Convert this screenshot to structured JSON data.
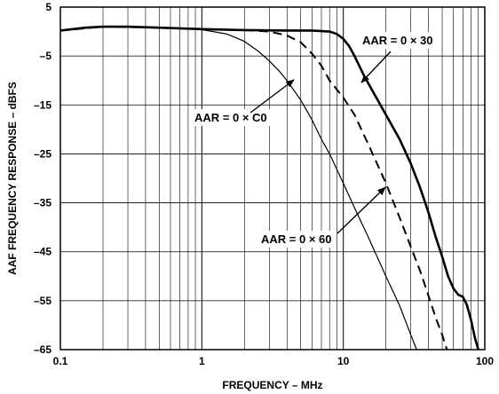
{
  "chart_data": {
    "type": "line",
    "xlabel": "FREQUENCY – MHz",
    "ylabel": "AAF FREQUENCY RESPONSE – dBFS",
    "x_scale": "log",
    "xlim": [
      0.1,
      100
    ],
    "ylim": [
      -65,
      5
    ],
    "grid": true,
    "x_ticks": [
      0.1,
      1,
      10,
      100
    ],
    "x_tick_labels": [
      "0.1",
      "1",
      "10",
      "100"
    ],
    "y_ticks": [
      5,
      -5,
      -15,
      -25,
      -35,
      -45,
      -55,
      -65
    ],
    "y_tick_labels": [
      "5",
      "–5",
      "–15",
      "–25",
      "–35",
      "–45",
      "–55",
      "–65"
    ],
    "series": [
      {
        "name": "AAR = 0 × 30",
        "style": "thick",
        "points": [
          [
            0.1,
            0.2
          ],
          [
            0.15,
            0.8
          ],
          [
            0.2,
            1.0
          ],
          [
            0.3,
            1.0
          ],
          [
            0.5,
            0.8
          ],
          [
            1,
            0.5
          ],
          [
            2,
            0.3
          ],
          [
            4,
            0.2
          ],
          [
            6,
            0.2
          ],
          [
            8,
            0.0
          ],
          [
            9,
            -0.5
          ],
          [
            10,
            -1.5
          ],
          [
            11,
            -3
          ],
          [
            12,
            -5
          ],
          [
            14,
            -9
          ],
          [
            16,
            -12
          ],
          [
            20,
            -17
          ],
          [
            25,
            -22
          ],
          [
            30,
            -27
          ],
          [
            35,
            -32
          ],
          [
            40,
            -37
          ],
          [
            45,
            -42
          ],
          [
            50,
            -46
          ],
          [
            55,
            -50
          ],
          [
            60,
            -52.5
          ],
          [
            65,
            -53.8
          ],
          [
            70,
            -54.2
          ],
          [
            75,
            -56
          ],
          [
            80,
            -59
          ],
          [
            85,
            -62.5
          ],
          [
            90,
            -65
          ]
        ]
      },
      {
        "name": "AAR = 0 × 60",
        "style": "dashed",
        "points": [
          [
            0.1,
            0.2
          ],
          [
            0.2,
            1.0
          ],
          [
            0.5,
            0.8
          ],
          [
            1,
            0.5
          ],
          [
            2,
            0.3
          ],
          [
            3,
            0.0
          ],
          [
            4,
            -0.8
          ],
          [
            5,
            -2.2
          ],
          [
            6,
            -4.5
          ],
          [
            7,
            -7
          ],
          [
            8,
            -10
          ],
          [
            10,
            -13.5
          ],
          [
            12,
            -17
          ],
          [
            15,
            -23
          ],
          [
            20,
            -31
          ],
          [
            25,
            -38
          ],
          [
            30,
            -44
          ],
          [
            35,
            -49
          ],
          [
            40,
            -54
          ],
          [
            45,
            -58.5
          ],
          [
            50,
            -62
          ],
          [
            54,
            -65
          ]
        ]
      },
      {
        "name": "AAR = 0 × C0",
        "style": "thin",
        "points": [
          [
            0.1,
            0.2
          ],
          [
            0.2,
            1.0
          ],
          [
            0.5,
            0.8
          ],
          [
            1,
            0.4
          ],
          [
            1.5,
            -0.5
          ],
          [
            2,
            -2
          ],
          [
            2.5,
            -4
          ],
          [
            3,
            -6
          ],
          [
            3.5,
            -8
          ],
          [
            4,
            -10
          ],
          [
            5,
            -14
          ],
          [
            6,
            -18
          ],
          [
            7,
            -22
          ],
          [
            8,
            -25
          ],
          [
            10,
            -31
          ],
          [
            12,
            -36
          ],
          [
            15,
            -42
          ],
          [
            20,
            -50
          ],
          [
            25,
            -56
          ],
          [
            30,
            -62
          ],
          [
            33,
            -65
          ]
        ]
      }
    ],
    "annotations": [
      {
        "text": "AAR = 0 × 30",
        "series": "AAR = 0 × 30"
      },
      {
        "text": "AAR = 0 × C0",
        "series": "AAR = 0 × C0"
      },
      {
        "text": "AAR = 0 × 60",
        "series": "AAR = 0 × 60"
      }
    ]
  }
}
